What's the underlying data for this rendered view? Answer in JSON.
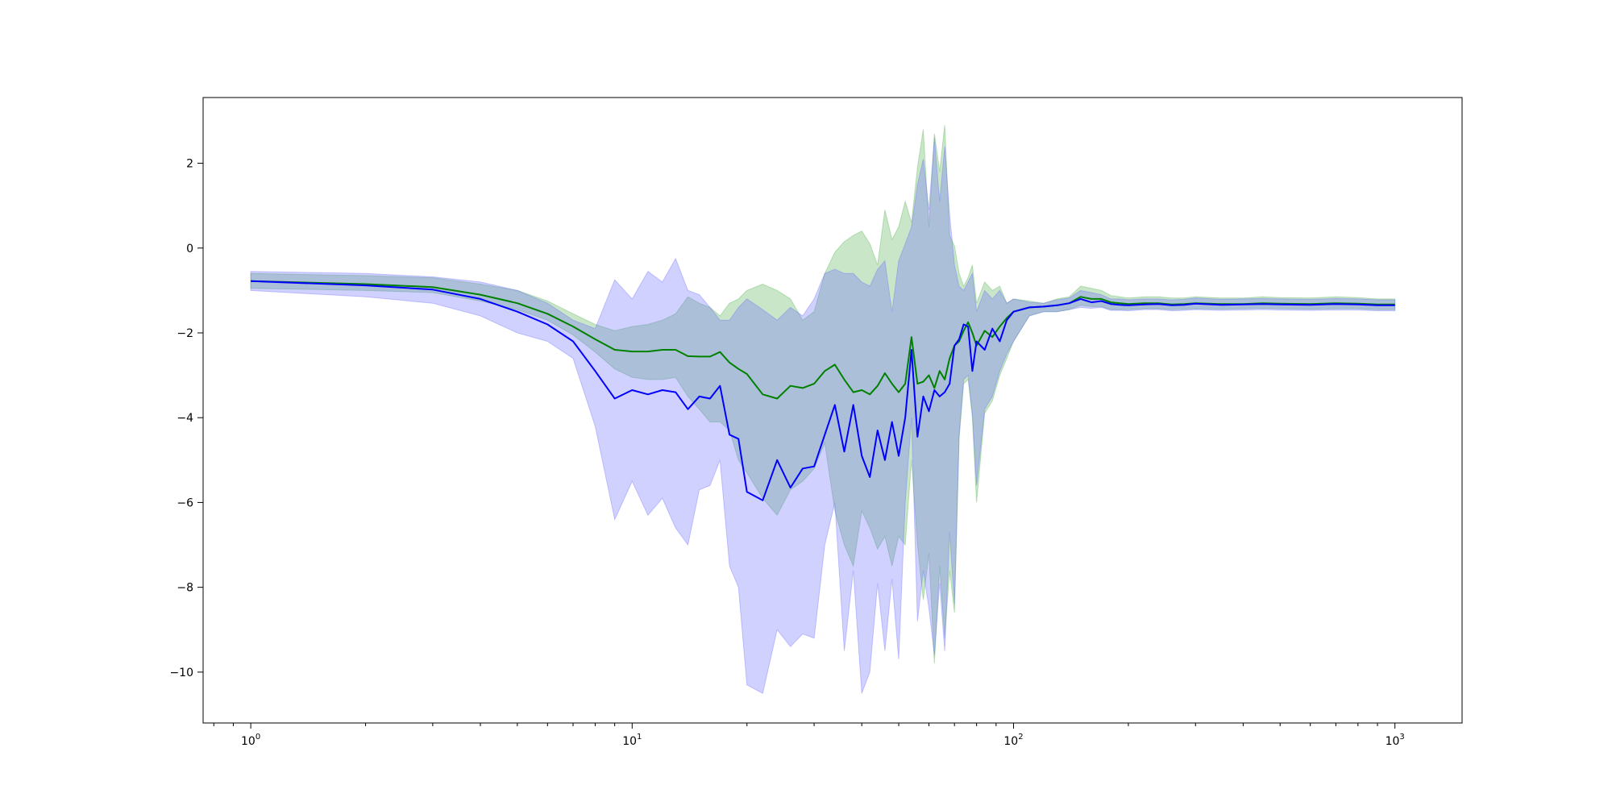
{
  "chart_data": {
    "type": "line",
    "title": "",
    "xlabel": "",
    "ylabel": "",
    "xscale": "log",
    "xlim": [
      0.75,
      1500
    ],
    "ylim": [
      -11.2,
      3.55
    ],
    "grid": false,
    "x_ticks": [
      {
        "value": 1,
        "base": "10",
        "exp": "0"
      },
      {
        "value": 10,
        "base": "10",
        "exp": "1"
      },
      {
        "value": 100,
        "base": "10",
        "exp": "2"
      },
      {
        "value": 1000,
        "base": "10",
        "exp": "3"
      }
    ],
    "y_ticks": [
      {
        "value": 2,
        "label": "2"
      },
      {
        "value": 0,
        "label": "0"
      },
      {
        "value": -2,
        "label": "−2"
      },
      {
        "value": -4,
        "label": "−4"
      },
      {
        "value": -6,
        "label": "−6"
      },
      {
        "value": -8,
        "label": "−8"
      },
      {
        "value": -10,
        "label": "−10"
      }
    ],
    "series": [
      {
        "color": "#008000",
        "band_color": "#4daf4a",
        "x": [
          1,
          2,
          3,
          4,
          5,
          6,
          7,
          8,
          9,
          10,
          11,
          12,
          13,
          14,
          15,
          16,
          17,
          18,
          19,
          20,
          22,
          24,
          26,
          28,
          30,
          32,
          34,
          36,
          38,
          40,
          42,
          44,
          46,
          48,
          50,
          52,
          54,
          56,
          58,
          60,
          62,
          64,
          66,
          68,
          70,
          72,
          74,
          76,
          78,
          80,
          84,
          88,
          92,
          96,
          100,
          110,
          120,
          130,
          140,
          150,
          160,
          170,
          180,
          190,
          200,
          220,
          240,
          260,
          280,
          300,
          350,
          400,
          450,
          500,
          600,
          700,
          800,
          900,
          1000
        ],
        "y": [
          -0.78,
          -0.85,
          -0.92,
          -1.1,
          -1.3,
          -1.55,
          -1.85,
          -2.15,
          -2.4,
          -2.44,
          -2.44,
          -2.4,
          -2.4,
          -2.55,
          -2.56,
          -2.56,
          -2.45,
          -2.7,
          -2.85,
          -2.97,
          -3.45,
          -3.55,
          -3.25,
          -3.3,
          -3.2,
          -2.9,
          -2.75,
          -3.1,
          -3.4,
          -3.35,
          -3.45,
          -3.25,
          -2.95,
          -3.2,
          -3.4,
          -3.2,
          -2.1,
          -3.2,
          -3.15,
          -3.0,
          -3.3,
          -2.9,
          -3.1,
          -2.6,
          -2.3,
          -2.2,
          -1.95,
          -1.75,
          -2.0,
          -2.3,
          -1.95,
          -2.1,
          -1.85,
          -1.65,
          -1.5,
          -1.4,
          -1.38,
          -1.35,
          -1.3,
          -1.15,
          -1.2,
          -1.2,
          -1.28,
          -1.3,
          -1.32,
          -1.3,
          -1.3,
          -1.33,
          -1.32,
          -1.3,
          -1.32,
          -1.32,
          -1.3,
          -1.31,
          -1.32,
          -1.3,
          -1.31,
          -1.33,
          -1.33
        ],
        "lower": [
          -0.95,
          -1.0,
          -1.05,
          -1.25,
          -1.45,
          -1.7,
          -2.05,
          -2.45,
          -2.85,
          -3.05,
          -3.1,
          -3.1,
          -3.05,
          -3.5,
          -3.8,
          -4.1,
          -4.1,
          -4.3,
          -5.0,
          -5.3,
          -5.9,
          -6.3,
          -5.7,
          -5.5,
          -5.2,
          -4.6,
          -6.2,
          -7.0,
          -7.5,
          -6.2,
          -6.6,
          -7.1,
          -6.8,
          -7.5,
          -6.8,
          -7.0,
          -5.0,
          -7.0,
          -8.3,
          -7.2,
          -9.8,
          -7.5,
          -9.2,
          -7.6,
          -8.6,
          -4.5,
          -3.2,
          -3.1,
          -4.0,
          -6.0,
          -3.9,
          -3.6,
          -3.0,
          -2.6,
          -2.2,
          -1.6,
          -1.5,
          -1.5,
          -1.45,
          -1.35,
          -1.38,
          -1.38,
          -1.45,
          -1.45,
          -1.45,
          -1.43,
          -1.43,
          -1.45,
          -1.44,
          -1.43,
          -1.44,
          -1.43,
          -1.42,
          -1.43,
          -1.44,
          -1.43,
          -1.43,
          -1.45,
          -1.45
        ],
        "upper": [
          -0.6,
          -0.65,
          -0.7,
          -0.85,
          -1.0,
          -1.25,
          -1.55,
          -1.8,
          -1.95,
          -1.85,
          -1.8,
          -1.7,
          -1.55,
          -1.15,
          -1.3,
          -1.4,
          -1.6,
          -1.3,
          -1.2,
          -1.0,
          -0.85,
          -1.0,
          -1.2,
          -1.7,
          -1.5,
          -0.6,
          -0.1,
          0.15,
          0.3,
          0.4,
          0.1,
          -0.4,
          0.9,
          0.2,
          0.5,
          1.1,
          0.6,
          1.9,
          2.8,
          0.5,
          2.7,
          1.8,
          2.9,
          0.3,
          0.05,
          -0.6,
          -0.9,
          -0.7,
          -0.4,
          -1.3,
          -0.8,
          -1.0,
          -0.9,
          -1.3,
          -1.2,
          -1.25,
          -1.3,
          -1.2,
          -1.15,
          -0.9,
          -0.95,
          -1.0,
          -1.12,
          -1.15,
          -1.18,
          -1.15,
          -1.15,
          -1.18,
          -1.18,
          -1.15,
          -1.18,
          -1.18,
          -1.15,
          -1.17,
          -1.18,
          -1.15,
          -1.17,
          -1.2,
          -1.2
        ]
      },
      {
        "color": "#0000ff",
        "band_color": "#6666ff",
        "x": [
          1,
          2,
          3,
          4,
          5,
          6,
          7,
          8,
          9,
          10,
          11,
          12,
          13,
          14,
          15,
          16,
          17,
          18,
          19,
          20,
          22,
          24,
          26,
          28,
          30,
          32,
          34,
          36,
          38,
          40,
          42,
          44,
          46,
          48,
          50,
          52,
          54,
          56,
          58,
          60,
          62,
          64,
          66,
          68,
          70,
          72,
          74,
          76,
          78,
          80,
          84,
          88,
          92,
          96,
          100,
          110,
          120,
          130,
          140,
          150,
          160,
          170,
          180,
          190,
          200,
          220,
          240,
          260,
          280,
          300,
          350,
          400,
          450,
          500,
          600,
          700,
          800,
          900,
          1000
        ],
        "y": [
          -0.78,
          -0.88,
          -0.98,
          -1.2,
          -1.5,
          -1.8,
          -2.2,
          -2.9,
          -3.55,
          -3.35,
          -3.45,
          -3.35,
          -3.4,
          -3.8,
          -3.5,
          -3.55,
          -3.25,
          -4.4,
          -4.5,
          -5.75,
          -5.95,
          -5.0,
          -5.65,
          -5.2,
          -5.15,
          -4.4,
          -3.7,
          -4.8,
          -3.7,
          -4.9,
          -5.4,
          -4.3,
          -5.0,
          -4.1,
          -4.9,
          -4.0,
          -2.4,
          -4.45,
          -3.5,
          -3.85,
          -3.35,
          -3.5,
          -3.4,
          -3.2,
          -2.3,
          -2.15,
          -1.8,
          -1.85,
          -2.9,
          -2.2,
          -2.4,
          -1.9,
          -2.2,
          -1.7,
          -1.5,
          -1.4,
          -1.38,
          -1.35,
          -1.3,
          -1.2,
          -1.28,
          -1.25,
          -1.32,
          -1.34,
          -1.35,
          -1.33,
          -1.32,
          -1.35,
          -1.34,
          -1.31,
          -1.34,
          -1.33,
          -1.32,
          -1.33,
          -1.34,
          -1.32,
          -1.33,
          -1.35,
          -1.35
        ],
        "lower": [
          -1.0,
          -1.15,
          -1.3,
          -1.6,
          -2.0,
          -2.2,
          -2.6,
          -4.2,
          -6.4,
          -5.5,
          -6.3,
          -5.9,
          -6.6,
          -7.0,
          -5.7,
          -5.6,
          -5.0,
          -7.5,
          -8.0,
          -10.3,
          -10.5,
          -9.0,
          -9.4,
          -9.1,
          -9.2,
          -7.0,
          -6.0,
          -9.5,
          -7.6,
          -10.5,
          -10.0,
          -7.9,
          -9.5,
          -7.8,
          -9.7,
          -6.0,
          -4.0,
          -8.8,
          -7.6,
          -8.5,
          -9.6,
          -7.9,
          -9.5,
          -6.7,
          -8.4,
          -4.4,
          -3.1,
          -3.0,
          -3.9,
          -5.6,
          -3.8,
          -3.5,
          -2.9,
          -2.5,
          -2.2,
          -1.6,
          -1.5,
          -1.5,
          -1.45,
          -1.4,
          -1.42,
          -1.4,
          -1.47,
          -1.47,
          -1.48,
          -1.45,
          -1.45,
          -1.48,
          -1.47,
          -1.45,
          -1.47,
          -1.46,
          -1.45,
          -1.46,
          -1.47,
          -1.46,
          -1.46,
          -1.48,
          -1.48
        ],
        "upper": [
          -0.55,
          -0.6,
          -0.68,
          -0.8,
          -1.0,
          -1.3,
          -1.7,
          -1.9,
          -0.75,
          -1.2,
          -0.55,
          -0.8,
          -0.25,
          -1.0,
          -1.1,
          -1.4,
          -1.7,
          -1.7,
          -1.4,
          -1.2,
          -1.45,
          -1.7,
          -1.4,
          -1.6,
          -1.2,
          -0.6,
          -0.5,
          -0.6,
          -0.6,
          -0.8,
          -0.9,
          -0.5,
          -0.3,
          -1.5,
          -0.3,
          0.1,
          0.5,
          1.5,
          2.1,
          0.9,
          2.6,
          1.1,
          2.4,
          0.8,
          -0.4,
          -0.9,
          -1.0,
          -0.8,
          -0.6,
          -1.5,
          -1.0,
          -1.2,
          -1.0,
          -1.3,
          -1.2,
          -1.28,
          -1.3,
          -1.22,
          -1.18,
          -1.0,
          -1.05,
          -1.1,
          -1.2,
          -1.2,
          -1.22,
          -1.2,
          -1.2,
          -1.22,
          -1.21,
          -1.18,
          -1.21,
          -1.2,
          -1.19,
          -1.2,
          -1.21,
          -1.19,
          -1.2,
          -1.22,
          -1.22
        ]
      }
    ]
  }
}
